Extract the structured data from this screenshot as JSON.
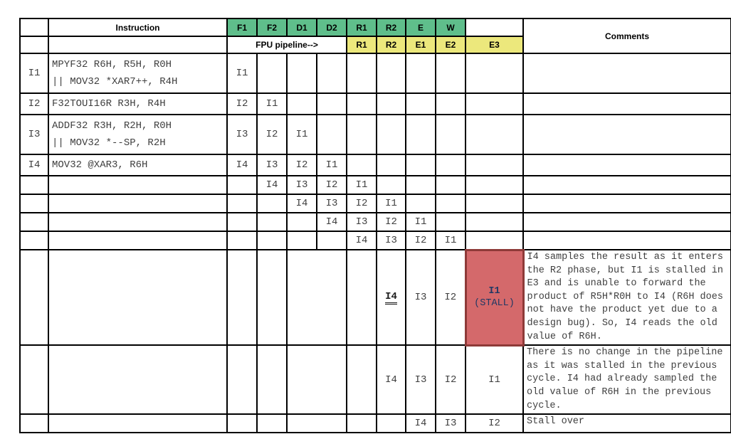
{
  "colors": {
    "stage_green": "#5FBE8B",
    "stage_yellow": "#ECE87C",
    "stall_red": "#D4696B",
    "stall_border": "#8E3A38",
    "stall_text": "#203864"
  },
  "header": {
    "instruction_label": "Instruction",
    "cpu_stages": [
      "F1",
      "F2",
      "D1",
      "D2",
      "R1",
      "R2",
      "E",
      "W"
    ],
    "fpu_pipeline_label": "FPU pipeline-->",
    "fpu_stages": [
      "R1",
      "R2",
      "E1",
      "E2",
      "E3"
    ],
    "comments_label": "Comments"
  },
  "rows": [
    {
      "label": "I1",
      "instruction": "MPYF32 R6H, R5H, R0H\n|| MOV32 *XAR7++, R4H",
      "cells": {
        "F1": "I1"
      }
    },
    {
      "label": "I2",
      "instruction": "F32TOUI16R R3H, R4H",
      "cells": {
        "F1": "I2",
        "F2": "I1"
      }
    },
    {
      "label": "I3",
      "instruction": "ADDF32 R3H, R2H, R0H\n|| MOV32 *--SP, R2H",
      "cells": {
        "F1": "I3",
        "F2": "I2",
        "D1": "I1"
      }
    },
    {
      "label": "I4",
      "instruction": "MOV32 @XAR3, R6H",
      "cells": {
        "F1": "I4",
        "F2": "I3",
        "D1": "I2",
        "D2": "I1"
      }
    },
    {
      "cells": {
        "F2": "I4",
        "D1": "I3",
        "D2": "I2",
        "R1": "I1"
      }
    },
    {
      "cells": {
        "D1": "I4",
        "D2": "I3",
        "R1": "I2",
        "R2": "I1"
      }
    },
    {
      "cells": {
        "D2": "I4",
        "R1": "I3",
        "R2": "I2",
        "E": "I1"
      }
    },
    {
      "cells": {
        "R1": "I4",
        "R2": "I3",
        "E": "I2",
        "W": "I1"
      }
    },
    {
      "cells": {
        "R2": "I4",
        "E": "I3",
        "W": "I2"
      },
      "emphasis": "R2",
      "stall_cell": {
        "line1": "I1",
        "line2": "(STALL)"
      },
      "comment": "I4 samples the result as it enters the R2 phase, but I1 is stalled in E3 and is unable to forward the product of R5H*R0H to I4 (R6H does not have the product yet due to a design bug). So, I4 reads the old value of R6H."
    },
    {
      "cells": {
        "R2": "I4",
        "E": "I3",
        "W": "I2",
        "E3": "I1"
      },
      "comment": "There is no change in the pipeline as it was stalled in the previous cycle. I4 had already sampled the old value of R6H in the previous cycle."
    },
    {
      "cells": {
        "E": "I4",
        "W": "I3",
        "E3": "I2"
      },
      "comment": "Stall over"
    }
  ]
}
